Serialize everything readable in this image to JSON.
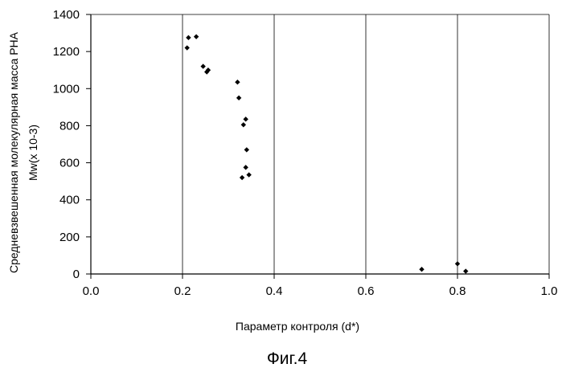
{
  "chart_data": {
    "type": "scatter",
    "xlabel": "Параметр контроля (d*)",
    "ylabel_line1": "Средневзвешенная молекулярная масса PHA",
    "ylabel_line2": "Mw(x 10-3)",
    "caption": "Фиг.4",
    "xlim": [
      0.0,
      1.0
    ],
    "ylim": [
      0,
      1400
    ],
    "x_ticks": [
      {
        "value": 0.0,
        "label": "0.0"
      },
      {
        "value": 0.2,
        "label": "0.2"
      },
      {
        "value": 0.4,
        "label": "0.4"
      },
      {
        "value": 0.6,
        "label": "0.6"
      },
      {
        "value": 0.8,
        "label": "0.8"
      },
      {
        "value": 1.0,
        "label": "1.0"
      }
    ],
    "y_ticks": [
      {
        "value": 0,
        "label": "0"
      },
      {
        "value": 200,
        "label": "200"
      },
      {
        "value": 400,
        "label": "400"
      },
      {
        "value": 600,
        "label": "600"
      },
      {
        "value": 800,
        "label": "800"
      },
      {
        "value": 1000,
        "label": "1000"
      },
      {
        "value": 1200,
        "label": "1200"
      },
      {
        "value": 1400,
        "label": "1400"
      }
    ],
    "grid": {
      "vertical": true,
      "horizontal": "top-only"
    },
    "marker": "diamond",
    "marker_color": "#000000",
    "points": [
      {
        "x": 0.21,
        "y": 1220
      },
      {
        "x": 0.213,
        "y": 1275
      },
      {
        "x": 0.23,
        "y": 1280
      },
      {
        "x": 0.245,
        "y": 1120
      },
      {
        "x": 0.253,
        "y": 1090
      },
      {
        "x": 0.256,
        "y": 1100
      },
      {
        "x": 0.32,
        "y": 1035
      },
      {
        "x": 0.323,
        "y": 950
      },
      {
        "x": 0.333,
        "y": 805
      },
      {
        "x": 0.338,
        "y": 835
      },
      {
        "x": 0.34,
        "y": 670
      },
      {
        "x": 0.338,
        "y": 575
      },
      {
        "x": 0.345,
        "y": 535
      },
      {
        "x": 0.33,
        "y": 520
      },
      {
        "x": 0.722,
        "y": 25
      },
      {
        "x": 0.8,
        "y": 55
      },
      {
        "x": 0.818,
        "y": 15
      }
    ]
  }
}
